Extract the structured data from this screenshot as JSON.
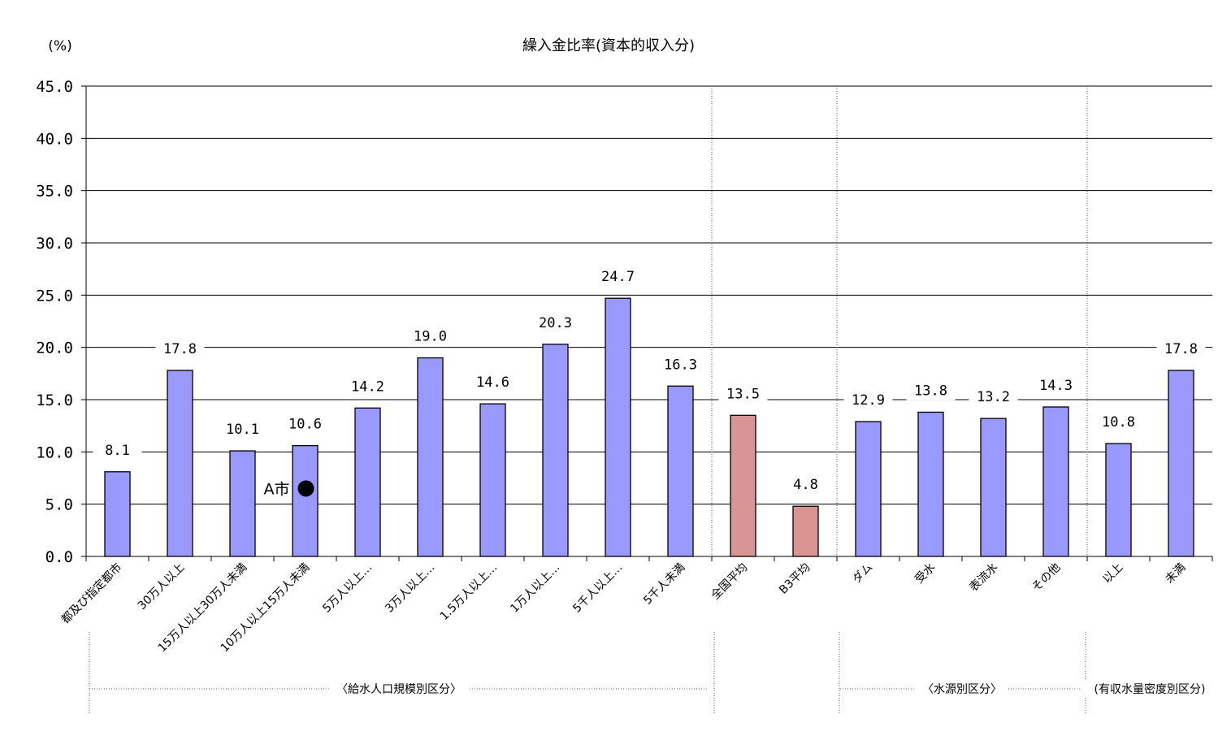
{
  "chart_data": {
    "type": "bar",
    "title": "繰入金比率(資本的収入分)",
    "ylabel": "(%)",
    "ylim": [
      0,
      45
    ],
    "yticks": [
      "0.0",
      "5.0",
      "10.0",
      "15.0",
      "20.0",
      "25.0",
      "30.0",
      "35.0",
      "40.0",
      "45.0"
    ],
    "grid": true,
    "categories": [
      "都及び指定都市",
      "30万人以上",
      "15万人以上30万人未満",
      "10万人以上15万人未満",
      "5万人以上…",
      "3万人以上…",
      "1.5万人以上…",
      "1万人以上…",
      "5千人以上…",
      "5千人未満",
      "全国平均",
      "B3平均",
      "ダム",
      "受水",
      "表流水",
      "その他",
      "以上",
      "未満"
    ],
    "values": [
      8.1,
      17.8,
      10.1,
      10.6,
      14.2,
      19.0,
      14.6,
      20.3,
      24.7,
      16.3,
      13.5,
      4.8,
      12.9,
      13.8,
      13.2,
      14.3,
      10.8,
      17.8
    ],
    "value_labels": [
      "8.1",
      "17.8",
      "10.1",
      "10.6",
      "14.2",
      "19.0",
      "14.6",
      "20.3",
      "24.7",
      "16.3",
      "13.5",
      "4.8",
      "12.9",
      "13.8",
      "13.2",
      "14.3",
      "10.8",
      "17.8"
    ],
    "highlight_indices": [
      10,
      11
    ],
    "colors": {
      "bar": "#9999FF",
      "highlight": "#D99594",
      "gridline": "#000000"
    },
    "groups": [
      {
        "label": "〈給水人口規模別区分〉",
        "start": 0,
        "end": 9
      },
      {
        "label": "〈水源別区分〉",
        "start": 12,
        "end": 15
      },
      {
        "label": "(有収水量密度別区分)",
        "start": 16,
        "end": 17
      }
    ],
    "marker": {
      "label": "A市",
      "category_index": 3,
      "value": 6.5,
      "icon": "filled-circle-icon"
    }
  }
}
